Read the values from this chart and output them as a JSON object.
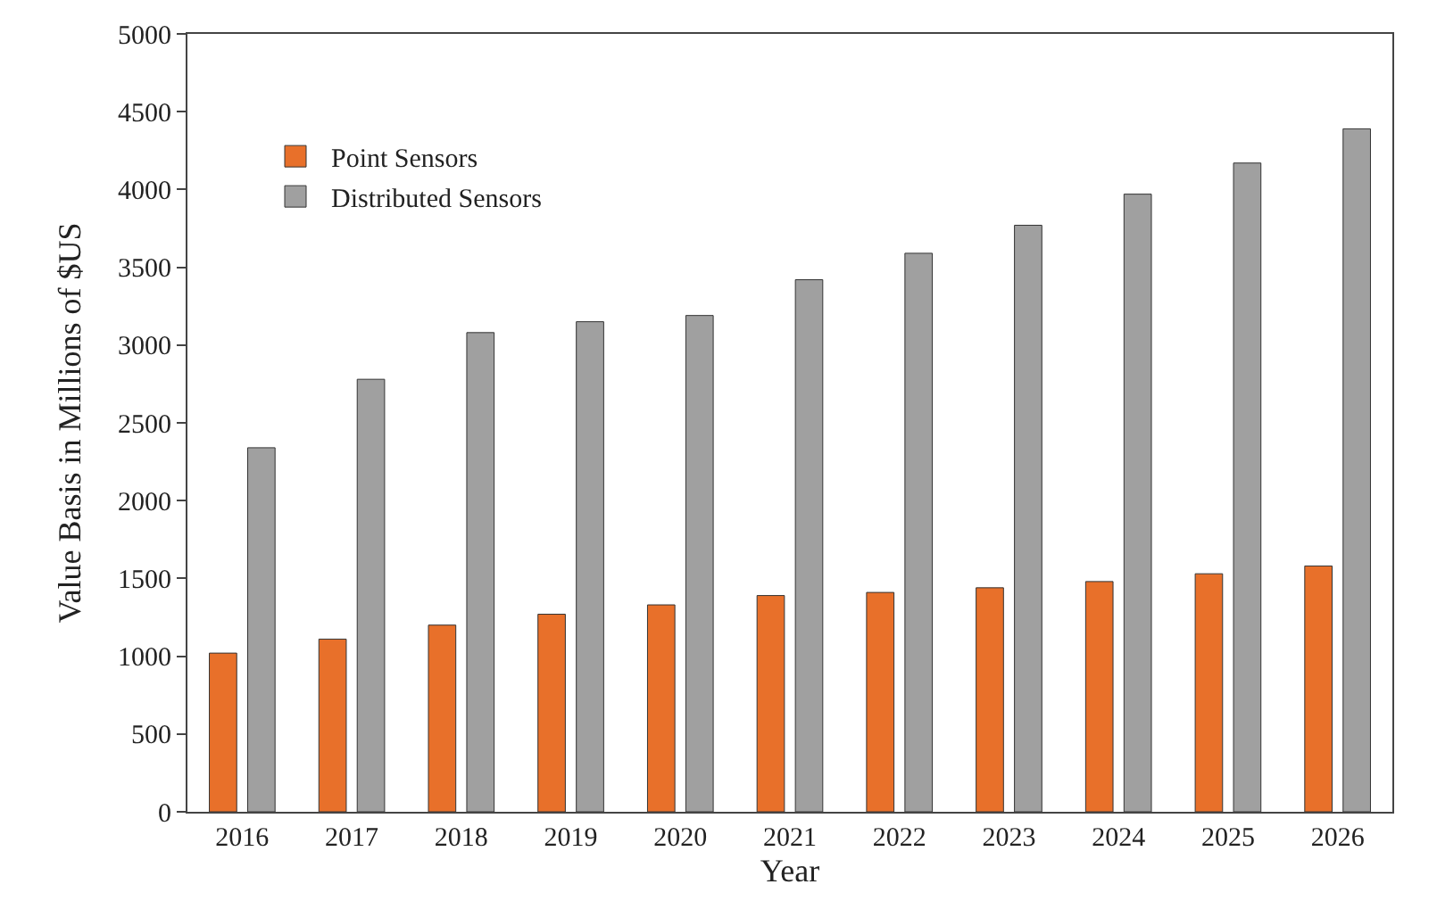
{
  "chart_data": {
    "type": "bar",
    "xlabel": "Year",
    "ylabel": "Value Basis in Millions of $US",
    "categories": [
      "2016",
      "2017",
      "2018",
      "2019",
      "2020",
      "2021",
      "2022",
      "2023",
      "2024",
      "2025",
      "2026"
    ],
    "series": [
      {
        "name": "Point Sensors",
        "color": "#e8702a",
        "values": [
          1020,
          1110,
          1200,
          1270,
          1330,
          1390,
          1410,
          1440,
          1480,
          1530,
          1580
        ]
      },
      {
        "name": "Distributed Sensors",
        "color": "#a0a0a0",
        "values": [
          2340,
          2780,
          3080,
          3150,
          3190,
          3420,
          3590,
          3770,
          3970,
          4170,
          4390
        ]
      }
    ],
    "ylim": [
      0,
      5000
    ],
    "yticks": [
      0,
      500,
      1000,
      1500,
      2000,
      2500,
      3000,
      3500,
      4000,
      4500,
      5000
    ],
    "grid": false,
    "legend": "top left"
  }
}
